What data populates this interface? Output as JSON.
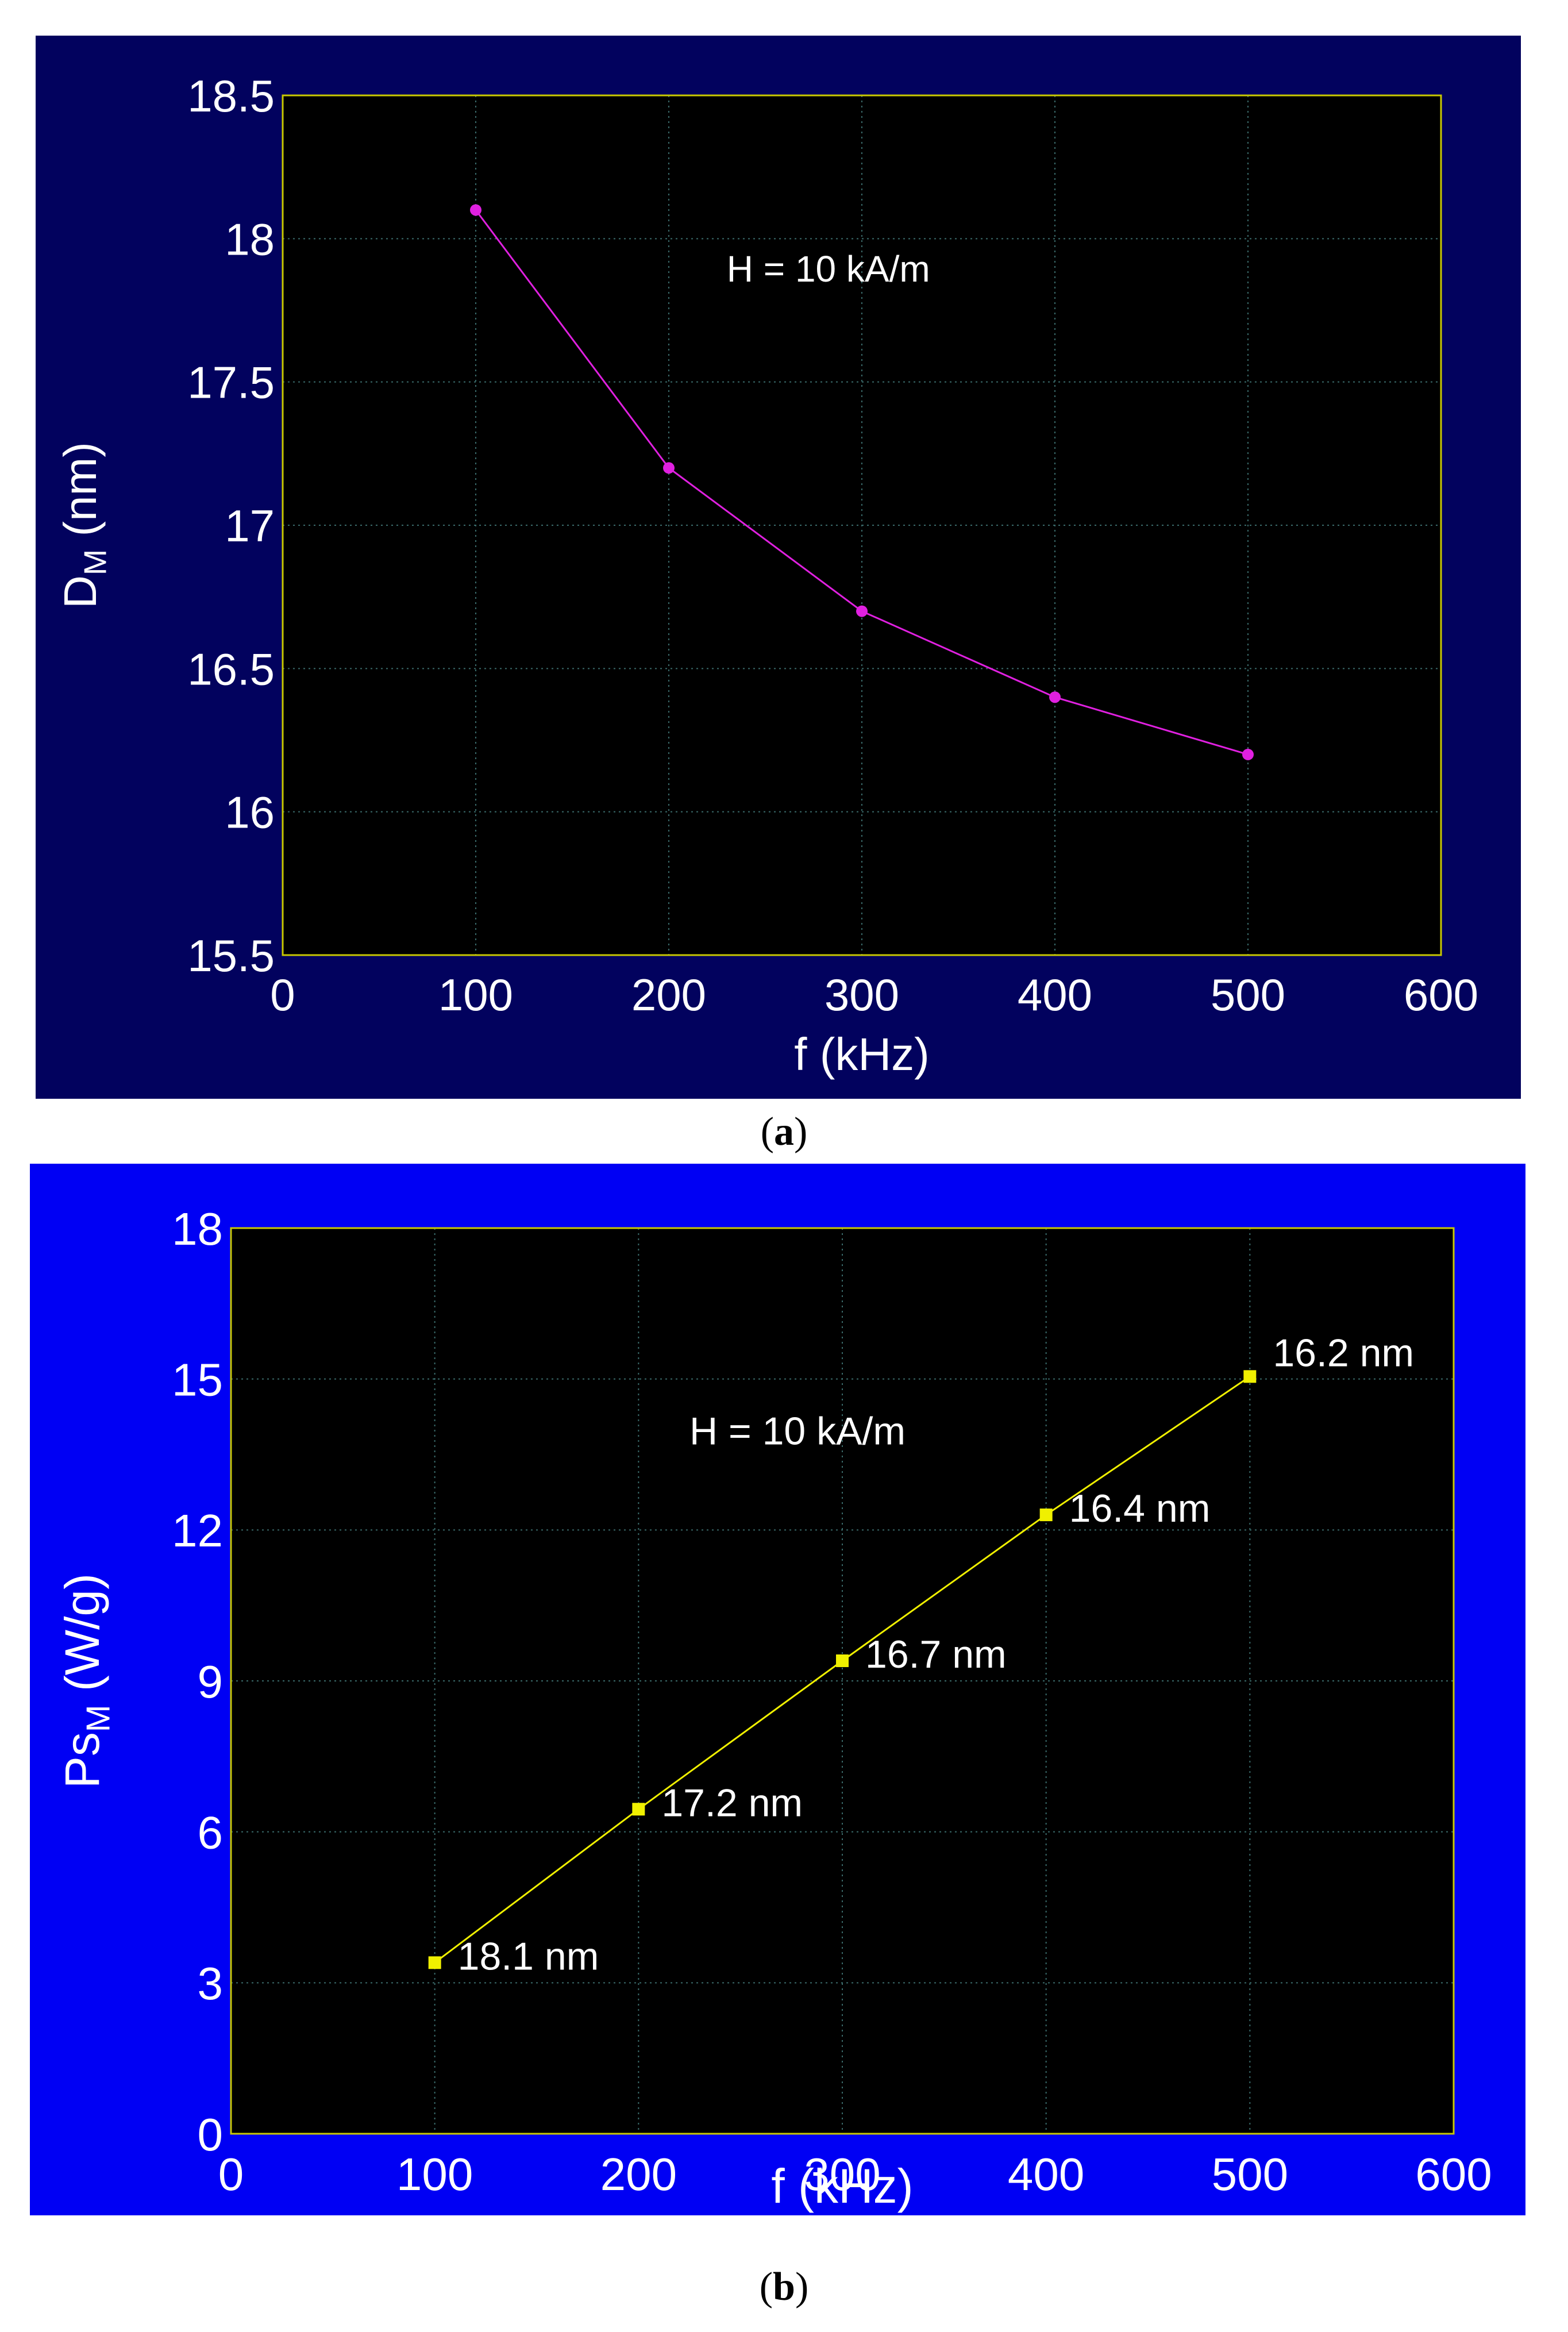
{
  "chart_data": [
    {
      "type": "line",
      "panel_label": "a",
      "xlabel": "f (kHz)",
      "ylabel_main": "D",
      "ylabel_sub": "M",
      "ylabel_unit": " (nm)",
      "x_ticks": [
        "0",
        "100",
        "200",
        "300",
        "400",
        "500",
        "600"
      ],
      "y_ticks": [
        "15.5",
        "16",
        "16.5",
        "17",
        "17.5",
        "18",
        "18.5"
      ],
      "xlim": [
        0,
        600
      ],
      "ylim": [
        15.5,
        18.5
      ],
      "annotation": "H = 10 kA/m",
      "grid": true,
      "series": [
        {
          "x": [
            100,
            200,
            300,
            400,
            500
          ],
          "y": [
            18.1,
            17.2,
            16.7,
            16.4,
            16.2
          ],
          "color": "#e020e0",
          "marker": "circle"
        }
      ]
    },
    {
      "type": "line",
      "panel_label": "b",
      "xlabel": "f (kHz)",
      "ylabel_main": "Ps",
      "ylabel_sub": "M",
      "ylabel_unit": " (W/g)",
      "x_ticks": [
        "0",
        "100",
        "200",
        "300",
        "400",
        "500",
        "600"
      ],
      "y_ticks": [
        "0",
        "3",
        "6",
        "9",
        "12",
        "15",
        "18"
      ],
      "xlim": [
        0,
        600
      ],
      "ylim": [
        0,
        18
      ],
      "annotation": "H = 10 kA/m",
      "grid": true,
      "series": [
        {
          "x": [
            100,
            200,
            300,
            400,
            500
          ],
          "y": [
            3.4,
            6.45,
            9.4,
            12.3,
            15.05
          ],
          "color": "#f0f000",
          "marker": "square",
          "point_labels": [
            "18.1 nm",
            "17.2 nm",
            "16.7 nm",
            "16.4 nm",
            "16.2 nm"
          ]
        }
      ]
    }
  ],
  "colors": {
    "panel_a_bg": "#02025e",
    "panel_b_bg": "#0000f4",
    "plot_bg": "#000000",
    "frame": "#c8c800",
    "grid": "#3a6a6a",
    "text": "#ffffff"
  }
}
